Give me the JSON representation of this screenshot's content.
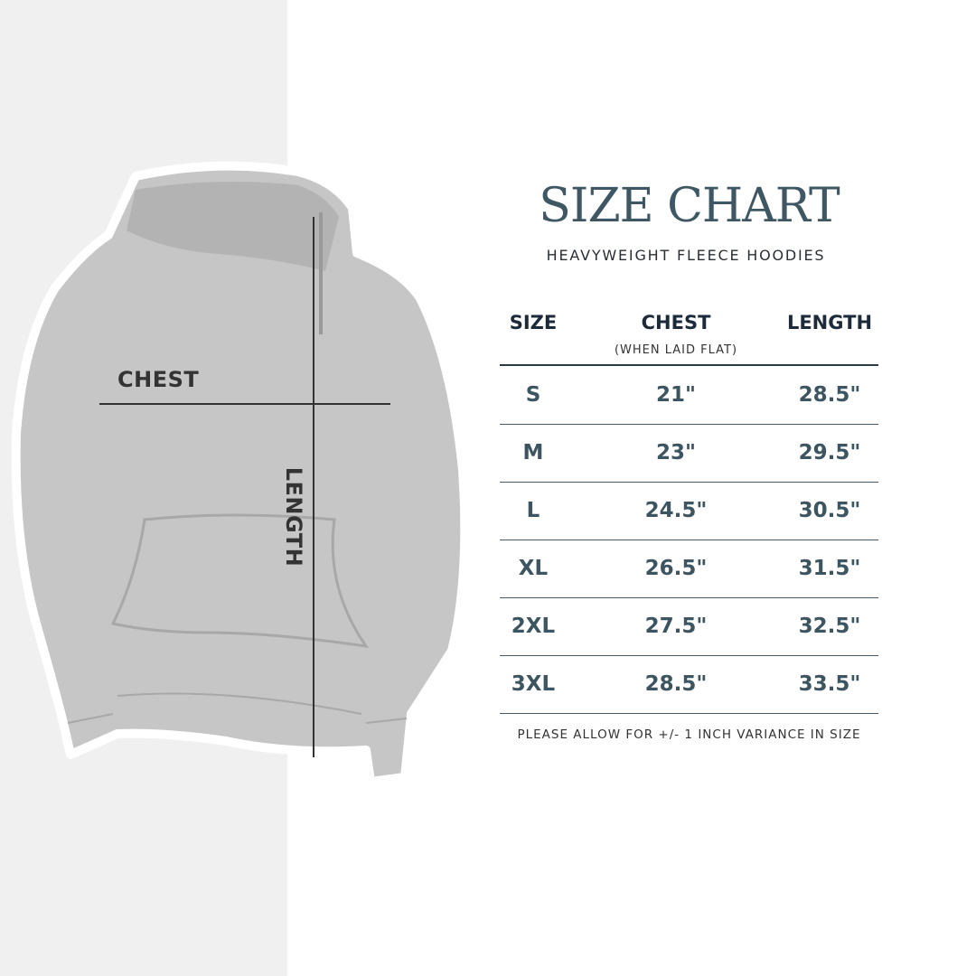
{
  "title": "SIZE CHART",
  "subtitle": "HEAVYWEIGHT FLEECE HOODIES",
  "image_labels": {
    "chest": "CHEST",
    "length": "LENGTH"
  },
  "table": {
    "headers": [
      "SIZE",
      "CHEST",
      "LENGTH"
    ],
    "chest_note": "(WHEN LAID FLAT)",
    "rows": [
      {
        "size": "S",
        "chest": "21\"",
        "length": "28.5\""
      },
      {
        "size": "M",
        "chest": "23\"",
        "length": "29.5\""
      },
      {
        "size": "L",
        "chest": "24.5\"",
        "length": "30.5\""
      },
      {
        "size": "XL",
        "chest": "26.5\"",
        "length": "31.5\""
      },
      {
        "size": "2XL",
        "chest": "27.5\"",
        "length": "32.5\""
      },
      {
        "size": "3XL",
        "chest": "28.5\"",
        "length": "33.5\""
      }
    ]
  },
  "footer": "PLEASE ALLOW FOR +/- 1 INCH VARIANCE IN SIZE",
  "colors": {
    "title": "#3e5763",
    "header": "#1c2a3a",
    "values": "#3d5561",
    "hoodie": "#c4c4c4",
    "left_panel": "#f0f0f0"
  }
}
